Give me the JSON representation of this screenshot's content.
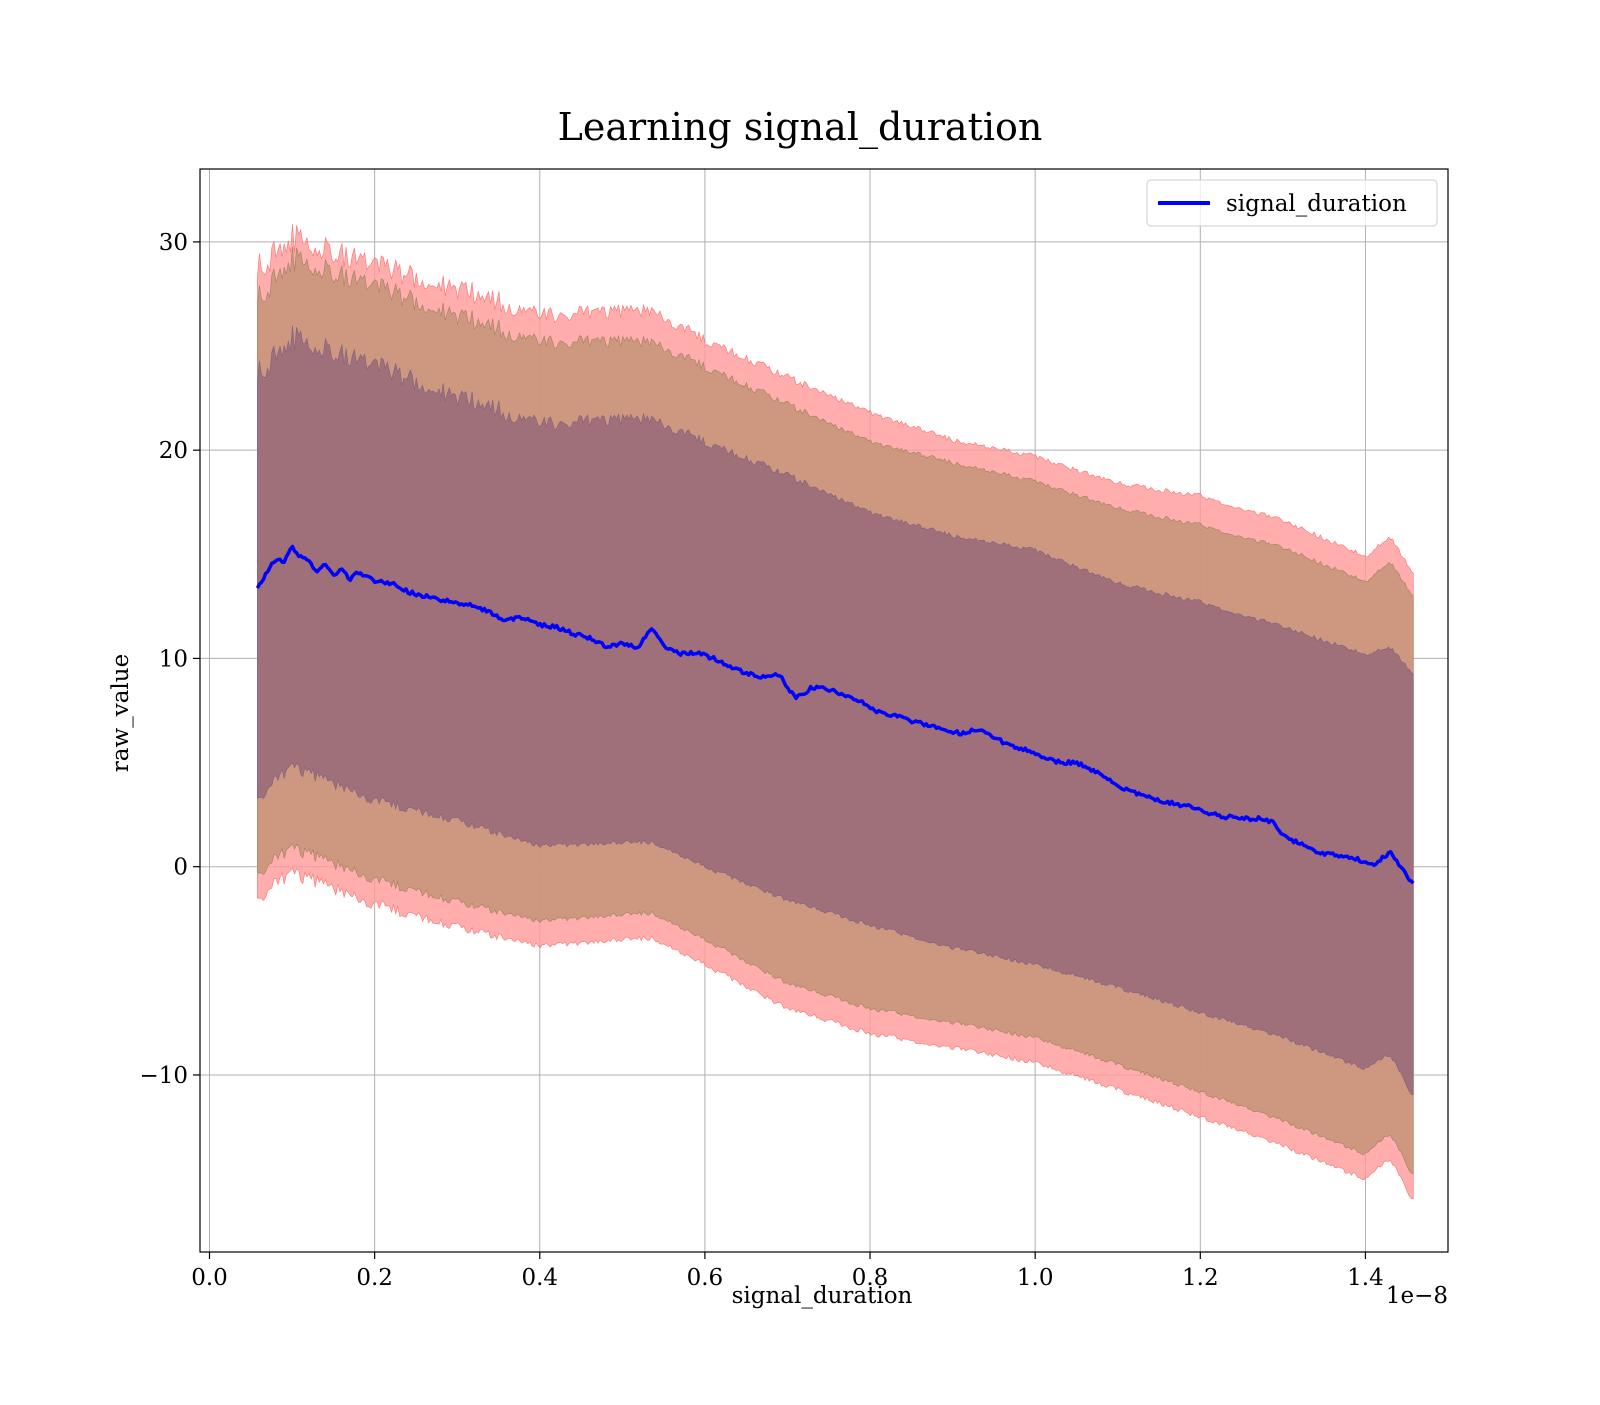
{
  "chart_data": {
    "type": "area",
    "title": "Learning signal_duration",
    "xlabel": "signal_duration",
    "ylabel": "raw_value",
    "x_offset_label": "1e−8",
    "x_scale_factor": 1e-08,
    "xlim": [
      -0.0115,
      1.5
    ],
    "ylim": [
      -18.5,
      33.5
    ],
    "xticks": [
      0.0,
      0.2,
      0.4,
      0.6,
      0.8,
      1.0,
      1.2,
      1.4
    ],
    "xtick_labels": [
      "0.0",
      "0.2",
      "0.4",
      "0.6",
      "0.8",
      "1.0",
      "1.2",
      "1.4"
    ],
    "yticks": [
      -10,
      0,
      10,
      20,
      30
    ],
    "ytick_labels": [
      "−10",
      "0",
      "10",
      "20",
      "30"
    ],
    "grid": true,
    "legend": {
      "position": "top-right",
      "entries": [
        "signal_duration"
      ]
    },
    "series": [
      {
        "name": "signal_duration",
        "color": "#0000ff",
        "points": [
          [
            0.058,
            13.3
          ],
          [
            0.07,
            14.2
          ],
          [
            0.08,
            14.8
          ],
          [
            0.09,
            14.6
          ],
          [
            0.1,
            15.3
          ],
          [
            0.11,
            14.9
          ],
          [
            0.12,
            14.7
          ],
          [
            0.13,
            14.2
          ],
          [
            0.14,
            14.6
          ],
          [
            0.15,
            14.0
          ],
          [
            0.16,
            14.3
          ],
          [
            0.17,
            13.8
          ],
          [
            0.18,
            14.1
          ],
          [
            0.2,
            13.7
          ],
          [
            0.22,
            13.6
          ],
          [
            0.24,
            13.2
          ],
          [
            0.26,
            13.0
          ],
          [
            0.28,
            12.8
          ],
          [
            0.3,
            12.7
          ],
          [
            0.32,
            12.5
          ],
          [
            0.34,
            12.2
          ],
          [
            0.36,
            11.8
          ],
          [
            0.38,
            12.0
          ],
          [
            0.4,
            11.6
          ],
          [
            0.42,
            11.5
          ],
          [
            0.44,
            11.2
          ],
          [
            0.46,
            11.0
          ],
          [
            0.48,
            10.6
          ],
          [
            0.5,
            10.7
          ],
          [
            0.52,
            10.5
          ],
          [
            0.535,
            11.5
          ],
          [
            0.55,
            10.6
          ],
          [
            0.57,
            10.2
          ],
          [
            0.59,
            10.3
          ],
          [
            0.61,
            10.0
          ],
          [
            0.63,
            9.6
          ],
          [
            0.65,
            9.3
          ],
          [
            0.67,
            9.1
          ],
          [
            0.69,
            9.2
          ],
          [
            0.71,
            8.1
          ],
          [
            0.73,
            8.6
          ],
          [
            0.75,
            8.5
          ],
          [
            0.77,
            8.2
          ],
          [
            0.79,
            7.9
          ],
          [
            0.81,
            7.4
          ],
          [
            0.83,
            7.3
          ],
          [
            0.85,
            7.0
          ],
          [
            0.87,
            6.8
          ],
          [
            0.89,
            6.6
          ],
          [
            0.91,
            6.4
          ],
          [
            0.93,
            6.6
          ],
          [
            0.95,
            6.2
          ],
          [
            0.97,
            5.8
          ],
          [
            0.99,
            5.6
          ],
          [
            1.01,
            5.3
          ],
          [
            1.03,
            5.0
          ],
          [
            1.05,
            5.0
          ],
          [
            1.07,
            4.6
          ],
          [
            1.09,
            4.2
          ],
          [
            1.11,
            3.7
          ],
          [
            1.13,
            3.4
          ],
          [
            1.15,
            3.2
          ],
          [
            1.17,
            3.0
          ],
          [
            1.19,
            2.9
          ],
          [
            1.21,
            2.6
          ],
          [
            1.23,
            2.4
          ],
          [
            1.25,
            2.3
          ],
          [
            1.27,
            2.3
          ],
          [
            1.29,
            2.1
          ],
          [
            1.3,
            1.5
          ],
          [
            1.32,
            1.1
          ],
          [
            1.34,
            0.7
          ],
          [
            1.36,
            0.6
          ],
          [
            1.38,
            0.5
          ],
          [
            1.4,
            0.2
          ],
          [
            1.41,
            0.1
          ],
          [
            1.43,
            0.7
          ],
          [
            1.445,
            -0.1
          ],
          [
            1.46,
            -1.0
          ]
        ]
      }
    ],
    "bands": [
      {
        "description": "outer",
        "color": "#ff9999",
        "upper": [
          [
            0.058,
            28.8
          ],
          [
            0.1,
            30.2
          ],
          [
            0.2,
            28.8
          ],
          [
            0.3,
            27.8
          ],
          [
            0.4,
            26.5
          ],
          [
            0.535,
            26.7
          ],
          [
            0.6,
            25.3
          ],
          [
            0.7,
            23.5
          ],
          [
            0.8,
            21.8
          ],
          [
            0.9,
            20.5
          ],
          [
            1.0,
            19.7
          ],
          [
            1.1,
            18.4
          ],
          [
            1.2,
            17.8
          ],
          [
            1.3,
            16.6
          ],
          [
            1.4,
            14.9
          ],
          [
            1.43,
            15.8
          ],
          [
            1.46,
            14.0
          ]
        ],
        "lower": [
          [
            0.058,
            -1.5
          ],
          [
            0.1,
            -0.3
          ],
          [
            0.2,
            -1.8
          ],
          [
            0.3,
            -2.9
          ],
          [
            0.4,
            -3.8
          ],
          [
            0.535,
            -3.4
          ],
          [
            0.6,
            -4.7
          ],
          [
            0.7,
            -6.8
          ],
          [
            0.8,
            -8.0
          ],
          [
            0.9,
            -8.7
          ],
          [
            1.0,
            -9.4
          ],
          [
            1.1,
            -10.7
          ],
          [
            1.2,
            -12.0
          ],
          [
            1.3,
            -13.4
          ],
          [
            1.4,
            -15.0
          ],
          [
            1.43,
            -14.0
          ],
          [
            1.46,
            -16.2
          ]
        ]
      },
      {
        "description": "middle",
        "color": "#c8967a",
        "upper": [
          [
            0.058,
            27.3
          ],
          [
            0.1,
            29.2
          ],
          [
            0.2,
            27.8
          ],
          [
            0.3,
            26.5
          ],
          [
            0.4,
            25.2
          ],
          [
            0.535,
            25.2
          ],
          [
            0.6,
            24.0
          ],
          [
            0.7,
            22.2
          ],
          [
            0.8,
            20.4
          ],
          [
            0.9,
            19.4
          ],
          [
            1.0,
            18.5
          ],
          [
            1.1,
            17.2
          ],
          [
            1.2,
            16.4
          ],
          [
            1.3,
            15.3
          ],
          [
            1.4,
            13.7
          ],
          [
            1.43,
            14.6
          ],
          [
            1.46,
            12.9
          ]
        ]
      },
      {
        "description": "inner",
        "color": "#a0707a",
        "upper": [
          [
            0.058,
            23.7
          ],
          [
            0.1,
            25.4
          ],
          [
            0.2,
            24.0
          ],
          [
            0.3,
            22.6
          ],
          [
            0.4,
            21.3
          ],
          [
            0.535,
            21.5
          ],
          [
            0.6,
            20.4
          ],
          [
            0.7,
            18.8
          ],
          [
            0.8,
            17.0
          ],
          [
            0.9,
            15.9
          ],
          [
            1.0,
            15.2
          ],
          [
            1.1,
            13.6
          ],
          [
            1.2,
            12.7
          ],
          [
            1.3,
            11.5
          ],
          [
            1.4,
            10.2
          ],
          [
            1.43,
            10.5
          ],
          [
            1.46,
            9.2
          ]
        ],
        "lower": [
          [
            0.058,
            3.3
          ],
          [
            0.1,
            4.8
          ],
          [
            0.2,
            3.2
          ],
          [
            0.3,
            2.2
          ],
          [
            0.4,
            1.0
          ],
          [
            0.535,
            1.2
          ],
          [
            0.6,
            0.0
          ],
          [
            0.7,
            -1.6
          ],
          [
            0.8,
            -2.8
          ],
          [
            0.9,
            -3.9
          ],
          [
            1.0,
            -4.7
          ],
          [
            1.1,
            -5.8
          ],
          [
            1.2,
            -7.0
          ],
          [
            1.3,
            -8.2
          ],
          [
            1.4,
            -9.7
          ],
          [
            1.43,
            -9.0
          ],
          [
            1.46,
            -11.2
          ]
        ]
      }
    ]
  }
}
